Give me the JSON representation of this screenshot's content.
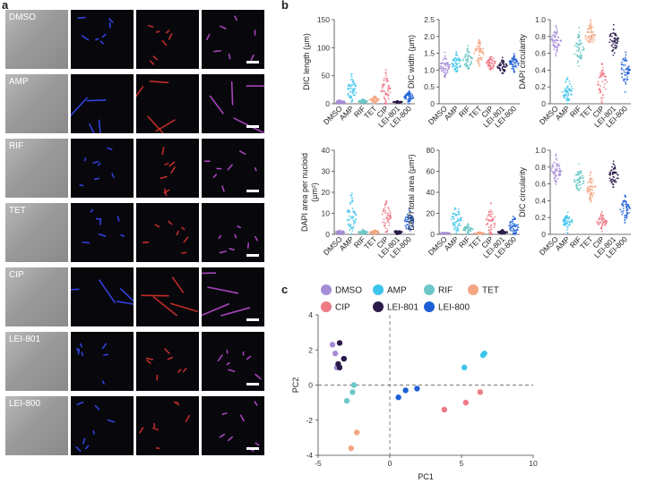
{
  "panel_labels": {
    "a": "a",
    "b": "b",
    "c": "c"
  },
  "conditions": [
    "DMSO",
    "AMP",
    "RIF",
    "TET",
    "CIP",
    "LEI-801",
    "LEI-800"
  ],
  "colors": {
    "DMSO": "#a58cd6",
    "AMP": "#3ec5ec",
    "RIF": "#6cc8c8",
    "TET": "#f4a582",
    "CIP": "#ee7a86",
    "LEI-801": "#2a1a4a",
    "LEI-800": "#1f5fd6"
  },
  "chart_data": [
    {
      "type": "scatter",
      "id": "dic-length",
      "ylabel": "DIC length (µm)",
      "ylim": [
        0,
        150
      ],
      "yticks": [
        "0",
        "50",
        "100",
        "150"
      ],
      "categories": [
        "DMSO",
        "AMP",
        "RIF",
        "TET",
        "CIP",
        "LEI-801",
        "LEI-800"
      ],
      "centers": [
        3,
        25,
        4,
        7,
        25,
        3,
        12
      ],
      "spreads": [
        2,
        12,
        2,
        3,
        14,
        1,
        5
      ]
    },
    {
      "type": "scatter",
      "id": "dic-width",
      "ylabel": "DIC width (µm)",
      "ylim": [
        0,
        2.5
      ],
      "yticks": [
        "0",
        "0.5",
        "1.0",
        "1.5",
        "2.0",
        "2.5"
      ],
      "categories": [
        "DMSO",
        "AMP",
        "RIF",
        "TET",
        "CIP",
        "LEI-801",
        "LEI-800"
      ],
      "centers": [
        1.1,
        1.2,
        1.3,
        1.5,
        1.2,
        1.1,
        1.2
      ],
      "spreads": [
        0.15,
        0.15,
        0.15,
        0.2,
        0.12,
        0.1,
        0.12
      ]
    },
    {
      "type": "scatter",
      "id": "dapi-circularity",
      "ylabel": "DAPI circularity",
      "ylim": [
        0,
        1.0
      ],
      "yticks": [
        "0",
        "0.2",
        "0.4",
        "0.6",
        "0.8",
        "1.0"
      ],
      "categories": [
        "DMSO",
        "AMP",
        "RIF",
        "TET",
        "CIP",
        "LEI-801",
        "LEI-800"
      ],
      "centers": [
        0.75,
        0.15,
        0.65,
        0.8,
        0.25,
        0.75,
        0.4
      ],
      "spreads": [
        0.08,
        0.08,
        0.1,
        0.08,
        0.1,
        0.08,
        0.1
      ]
    },
    {
      "type": "scatter",
      "id": "dapi-area-per-nucleoid",
      "ylabel": "DAPI area per nucloid",
      "ylabel2": "(µm²)",
      "ylim": [
        0,
        40
      ],
      "yticks": [
        "0",
        "10",
        "20",
        "30",
        "40"
      ],
      "categories": [
        "DMSO",
        "AMP",
        "RIF",
        "TET",
        "CIP",
        "LEI-801",
        "LEI-800"
      ],
      "centers": [
        1,
        9,
        1,
        1,
        8,
        1,
        6
      ],
      "spreads": [
        0.5,
        5,
        0.5,
        0.5,
        4,
        0.5,
        3
      ]
    },
    {
      "type": "scatter",
      "id": "dapi-total-area",
      "ylabel": "DAPI total area (µm²)",
      "ylim": [
        0,
        80
      ],
      "yticks": [
        "0",
        "20",
        "40",
        "60",
        "80"
      ],
      "categories": [
        "DMSO",
        "AMP",
        "RIF",
        "TET",
        "CIP",
        "LEI-801",
        "LEI-800"
      ],
      "centers": [
        1,
        14,
        5,
        1,
        12,
        2,
        8
      ],
      "spreads": [
        0.5,
        8,
        2,
        0.5,
        7,
        1,
        5
      ]
    },
    {
      "type": "scatter",
      "id": "dic-circularity",
      "ylabel": "DIC circularity",
      "ylim": [
        0,
        1.0
      ],
      "yticks": [
        "0",
        "0.2",
        "0.4",
        "0.6",
        "0.8",
        "1.0"
      ],
      "categories": [
        "DMSO",
        "AMP",
        "RIF",
        "TET",
        "CIP",
        "LEI-801",
        "LEI-800"
      ],
      "centers": [
        0.75,
        0.15,
        0.65,
        0.55,
        0.15,
        0.7,
        0.3
      ],
      "spreads": [
        0.08,
        0.05,
        0.08,
        0.08,
        0.05,
        0.07,
        0.07
      ]
    },
    {
      "type": "scatter",
      "id": "pca",
      "xlabel": "PC1",
      "ylabel": "PC2",
      "xlim": [
        -5,
        10
      ],
      "ylim": [
        -4,
        4
      ],
      "xticks": [
        "-5",
        "0",
        "5",
        "10"
      ],
      "yticks": [
        "-4",
        "-2",
        "0",
        "2",
        "4"
      ],
      "legend": [
        "DMSO",
        "AMP",
        "RIF",
        "TET",
        "CIP",
        "LEI-801",
        "LEI-800"
      ],
      "series": [
        {
          "name": "DMSO",
          "points": [
            [
              -4.0,
              2.3
            ],
            [
              -3.8,
              1.8
            ],
            [
              -3.7,
              1.0
            ]
          ]
        },
        {
          "name": "AMP",
          "points": [
            [
              5.2,
              1.0
            ],
            [
              6.5,
              1.7
            ],
            [
              6.6,
              1.8
            ]
          ]
        },
        {
          "name": "RIF",
          "points": [
            [
              -2.5,
              0.0
            ],
            [
              -2.6,
              -0.4
            ],
            [
              -3.0,
              -0.9
            ]
          ]
        },
        {
          "name": "TET",
          "points": [
            [
              -2.3,
              -2.7
            ],
            [
              -2.7,
              -3.6
            ]
          ]
        },
        {
          "name": "CIP",
          "points": [
            [
              3.8,
              -1.4
            ],
            [
              5.3,
              -1.0
            ],
            [
              6.3,
              -0.4
            ]
          ]
        },
        {
          "name": "LEI-801",
          "points": [
            [
              -3.5,
              2.4
            ],
            [
              -3.2,
              1.5
            ],
            [
              -3.5,
              1.0
            ],
            [
              -3.6,
              1.2
            ]
          ]
        },
        {
          "name": "LEI-800",
          "points": [
            [
              0.6,
              -0.7
            ],
            [
              1.1,
              -0.3
            ],
            [
              1.9,
              -0.2
            ]
          ]
        }
      ]
    }
  ]
}
